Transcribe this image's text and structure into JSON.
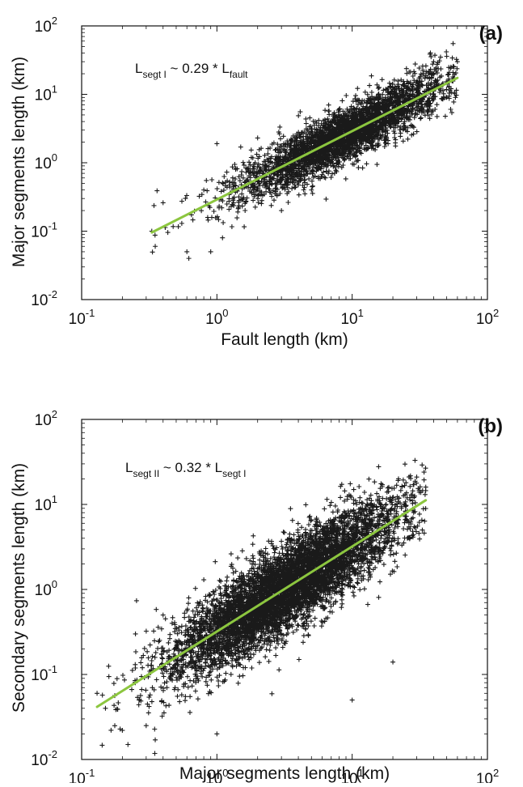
{
  "colors": {
    "points": "#1a1a1a",
    "fit_line": "#8cc63f",
    "axes": "#111111"
  },
  "chart_data": [
    {
      "type": "scatter",
      "panel_label": "(a)",
      "annotation": {
        "base": "L",
        "sub1": "segt I",
        "middle": " ~ 0.29 * L",
        "sub2": "fault"
      },
      "xlabel": "Fault length (km)",
      "ylabel": "Major segments length (km)",
      "x_scale": "log",
      "y_scale": "log",
      "xlim": [
        0.1,
        100
      ],
      "ylim": [
        0.01,
        100
      ],
      "x_ticks": [
        {
          "base": "10",
          "exp": "-1"
        },
        {
          "base": "10",
          "exp": "0"
        },
        {
          "base": "10",
          "exp": "1"
        },
        {
          "base": "10",
          "exp": "2"
        }
      ],
      "y_ticks": [
        {
          "base": "10",
          "exp": "-2"
        },
        {
          "base": "10",
          "exp": "-1"
        },
        {
          "base": "10",
          "exp": "0"
        },
        {
          "base": "10",
          "exp": "1"
        },
        {
          "base": "10",
          "exp": "2"
        }
      ],
      "grid": false,
      "marker": "+",
      "fit": {
        "coefficient": 0.29,
        "x_range": [
          0.33,
          60
        ]
      },
      "cloud": {
        "n_points": 3400,
        "x_log_mean": 0.95,
        "x_log_sd": 0.38,
        "x_range": [
          0.33,
          60
        ],
        "y_scatter_log_sd": 0.2
      },
      "points": [
        {
          "x": 0.33,
          "y": 0.1
        },
        {
          "x": 0.35,
          "y": 0.06
        },
        {
          "x": 0.4,
          "y": 0.26
        },
        {
          "x": 0.55,
          "y": 0.13
        },
        {
          "x": 0.6,
          "y": 0.05
        },
        {
          "x": 0.62,
          "y": 0.04
        },
        {
          "x": 0.8,
          "y": 0.4
        },
        {
          "x": 0.9,
          "y": 0.05
        },
        {
          "x": 1.0,
          "y": 1.9
        },
        {
          "x": 1.1,
          "y": 0.08
        },
        {
          "x": 1.5,
          "y": 1.7
        },
        {
          "x": 2.0,
          "y": 2.3
        },
        {
          "x": 3.0,
          "y": 0.2
        },
        {
          "x": 5.0,
          "y": 0.4
        },
        {
          "x": 40,
          "y": 30
        },
        {
          "x": 45,
          "y": 35
        },
        {
          "x": 50,
          "y": 36
        },
        {
          "x": 55,
          "y": 34
        },
        {
          "x": 60,
          "y": 30
        },
        {
          "x": 58,
          "y": 9
        }
      ]
    },
    {
      "type": "scatter",
      "panel_label": "(b)",
      "annotation": {
        "base": "L",
        "sub1": "segt II",
        "middle": " ~ 0.32 * L",
        "sub2": "segt I"
      },
      "xlabel": "Major segments length (km)",
      "ylabel": "Secondary segments length (km)",
      "x_scale": "log",
      "y_scale": "log",
      "xlim": [
        0.1,
        100
      ],
      "ylim": [
        0.01,
        100
      ],
      "x_ticks": [
        {
          "base": "10",
          "exp": "-1"
        },
        {
          "base": "10",
          "exp": "0"
        },
        {
          "base": "10",
          "exp": "1"
        },
        {
          "base": "10",
          "exp": "2"
        }
      ],
      "y_ticks": [
        {
          "base": "10",
          "exp": "-2"
        },
        {
          "base": "10",
          "exp": "-1"
        },
        {
          "base": "10",
          "exp": "0"
        },
        {
          "base": "10",
          "exp": "1"
        },
        {
          "base": "10",
          "exp": "2"
        }
      ],
      "grid": false,
      "marker": "+",
      "fit": {
        "coefficient": 0.32,
        "x_range": [
          0.13,
          35
        ]
      },
      "cloud": {
        "n_points": 6000,
        "x_log_mean": 0.5,
        "x_log_sd": 0.42,
        "x_range": [
          0.13,
          35
        ],
        "y_scatter_log_sd": 0.25
      },
      "points": [
        {
          "x": 0.13,
          "y": 0.06
        },
        {
          "x": 0.15,
          "y": 0.04
        },
        {
          "x": 0.2,
          "y": 0.022
        },
        {
          "x": 0.22,
          "y": 0.015
        },
        {
          "x": 0.3,
          "y": 0.025
        },
        {
          "x": 0.35,
          "y": 0.017
        },
        {
          "x": 0.25,
          "y": 0.3
        },
        {
          "x": 0.4,
          "y": 0.5
        },
        {
          "x": 0.8,
          "y": 1.3
        },
        {
          "x": 1.0,
          "y": 0.02
        },
        {
          "x": 10,
          "y": 0.05
        },
        {
          "x": 20,
          "y": 0.14
        },
        {
          "x": 22,
          "y": 20
        },
        {
          "x": 25,
          "y": 18
        },
        {
          "x": 30,
          "y": 21
        },
        {
          "x": 34,
          "y": 24
        },
        {
          "x": 35,
          "y": 16
        },
        {
          "x": 33,
          "y": 5
        }
      ]
    }
  ]
}
